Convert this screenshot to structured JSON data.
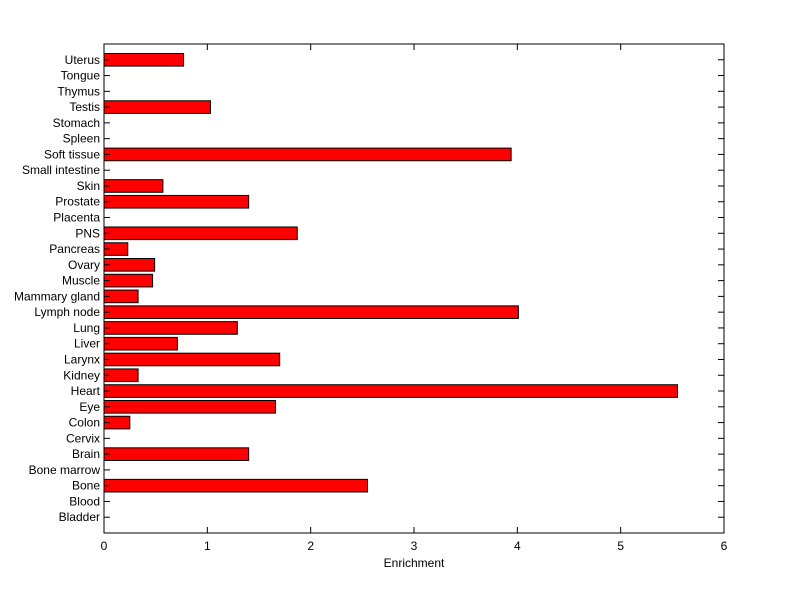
{
  "chart_data": {
    "type": "bar",
    "orientation": "horizontal",
    "title": "",
    "xlabel": "Enrichment",
    "ylabel": "",
    "xlim": [
      0,
      6
    ],
    "xticks": [
      "0",
      "1",
      "2",
      "3",
      "4",
      "5",
      "6"
    ],
    "grid": false,
    "legend": "none",
    "bar_color": "#ff0000",
    "categories": [
      "Bladder",
      "Blood",
      "Bone",
      "Bone marrow",
      "Brain",
      "Cervix",
      "Colon",
      "Eye",
      "Heart",
      "Kidney",
      "Larynx",
      "Liver",
      "Lung",
      "Lymph node",
      "Mammary gland",
      "Muscle",
      "Ovary",
      "Pancreas",
      "PNS",
      "Placenta",
      "Prostate",
      "Skin",
      "Small intestine",
      "Soft tissue",
      "Spleen",
      "Stomach",
      "Testis",
      "Thymus",
      "Tongue",
      "Uterus"
    ],
    "values": [
      0,
      0,
      2.55,
      0,
      1.4,
      0,
      0.25,
      1.66,
      5.55,
      0.33,
      1.7,
      0.71,
      1.29,
      4.01,
      0.33,
      0.47,
      0.49,
      0.23,
      1.87,
      0,
      1.4,
      0.57,
      0,
      3.94,
      0,
      0,
      1.03,
      0,
      0,
      0.77
    ]
  }
}
